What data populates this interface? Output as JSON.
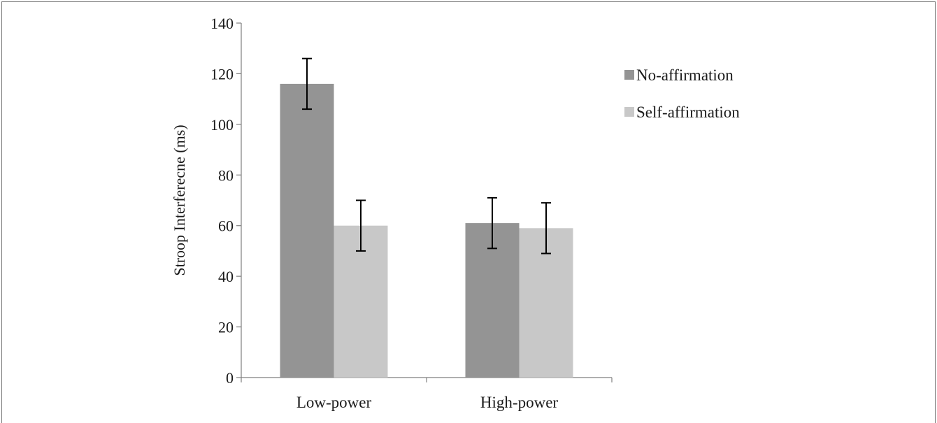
{
  "chart_data": {
    "type": "bar",
    "title": "",
    "xlabel": "",
    "ylabel": "Stroop Interferecne (ms)",
    "ylim": [
      0,
      140
    ],
    "yticks": [
      0,
      20,
      40,
      60,
      80,
      100,
      120,
      140
    ],
    "categories": [
      "Low-power",
      "High-power"
    ],
    "series": [
      {
        "name": "No-affirmation",
        "color": "#949494",
        "values": [
          116,
          61
        ],
        "errors": [
          10,
          10
        ]
      },
      {
        "name": "Self-affirmation",
        "color": "#c8c8c8",
        "values": [
          60,
          59
        ],
        "errors": [
          10,
          10
        ]
      }
    ],
    "grid": false,
    "legend": "right"
  }
}
